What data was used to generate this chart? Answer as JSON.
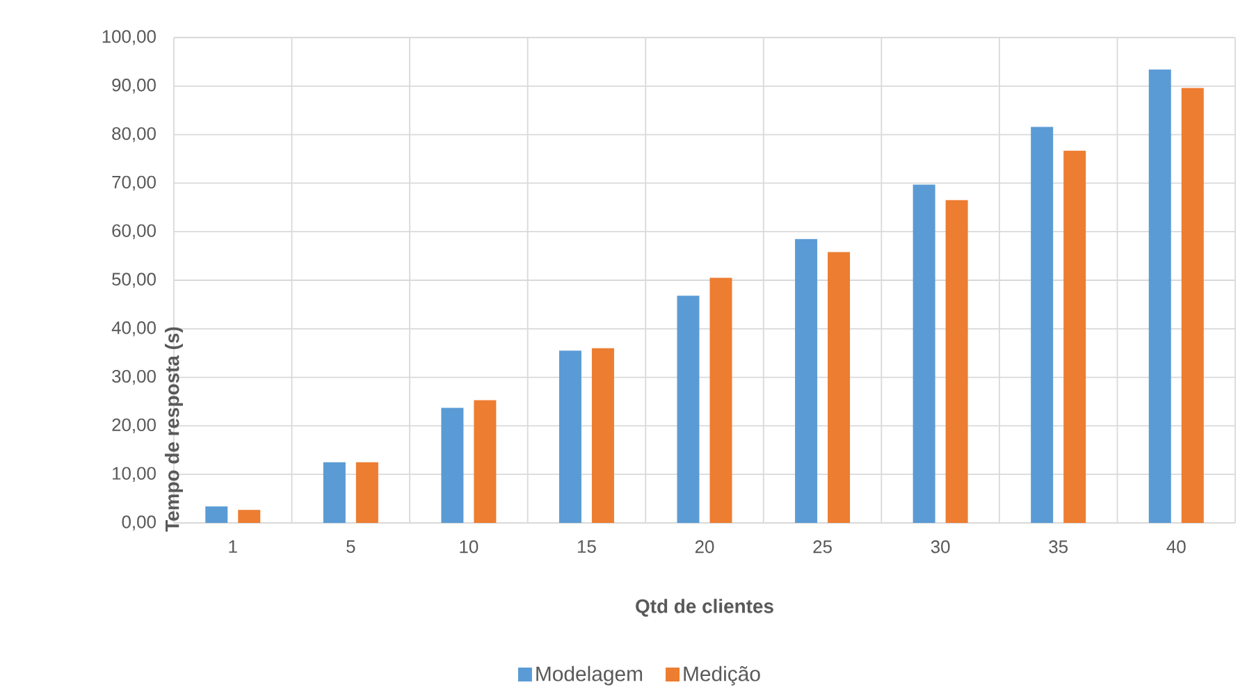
{
  "chart_data": {
    "type": "bar",
    "xlabel": "Qtd de clientes",
    "ylabel": "Tempo de resposta (s)",
    "categories": [
      "1",
      "5",
      "10",
      "15",
      "20",
      "25",
      "30",
      "35",
      "40"
    ],
    "series": [
      {
        "name": "Modelagem",
        "color": "#5b9bd5",
        "values": [
          3.4,
          12.5,
          23.7,
          35.5,
          46.8,
          58.5,
          69.7,
          81.6,
          93.4
        ]
      },
      {
        "name": "Medição",
        "color": "#ed7d31",
        "values": [
          2.7,
          12.5,
          25.3,
          36.0,
          50.5,
          55.8,
          66.5,
          76.7,
          89.6
        ]
      }
    ],
    "ylim": [
      0,
      100
    ],
    "yticks": [
      {
        "value": 0,
        "label": "0,00"
      },
      {
        "value": 10,
        "label": "10,00"
      },
      {
        "value": 20,
        "label": "20,00"
      },
      {
        "value": 30,
        "label": "30,00"
      },
      {
        "value": 40,
        "label": "40,00"
      },
      {
        "value": 50,
        "label": "50,00"
      },
      {
        "value": 60,
        "label": "60,00"
      },
      {
        "value": 70,
        "label": "70,00"
      },
      {
        "value": 80,
        "label": "80,00"
      },
      {
        "value": 90,
        "label": "90,00"
      },
      {
        "value": 100,
        "label": "100,00"
      }
    ],
    "grid": true,
    "legend": "bottom"
  }
}
